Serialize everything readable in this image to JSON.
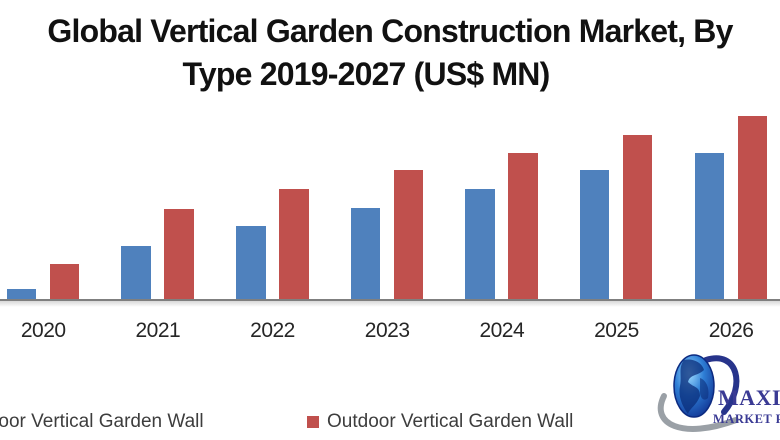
{
  "title": {
    "line1": "Global Vertical Garden Construction Market, By",
    "line2": "Type 2019-2027 (US$ MN)"
  },
  "chart_data": {
    "type": "bar",
    "title": "Global Vertical Garden Construction Market, By Type 2019-2027 (US$ MN)",
    "categories": [
      "2020",
      "2021",
      "2022",
      "2023",
      "2024",
      "2025",
      "2026"
    ],
    "series": [
      {
        "name": "Indoor Vertical Garden Wall",
        "color": "#4F81BD",
        "values": [
          11,
          54,
          74,
          92,
          111,
          130,
          147
        ]
      },
      {
        "name": "Outdoor Vertical Garden Wall",
        "color": "#C0504D",
        "values": [
          36,
          91,
          111,
          130,
          147,
          165,
          184
        ]
      }
    ],
    "value_unit": "relative units (bar heights in screenshot pixels; y-axis not visible in the cropped frame)",
    "xlabel": "",
    "ylabel": "",
    "grid": false,
    "legend_position": "bottom",
    "visible_year_range": "2020-2026 (2019 and 2027 groups cropped outside the frame)"
  },
  "legend": {
    "items": [
      {
        "label": "Indoor Vertical Garden Wall",
        "swatch_color": "#4F81BD"
      },
      {
        "label": "Outdoor Vertical Garden Wall",
        "swatch_color": "#C0504D"
      }
    ]
  },
  "logo": {
    "text_top": "MAXIM",
    "text_bottom": "MARKET R",
    "text_color": "#3A3A94"
  },
  "colors": {
    "indoor_bar": "#4F81BD",
    "outdoor_bar": "#C0504D",
    "axis_line": "#7F7F7F",
    "title_text": "#111111",
    "tick_text": "#262626",
    "legend_text": "#3D3D3D",
    "background": "#FFFFFF"
  }
}
